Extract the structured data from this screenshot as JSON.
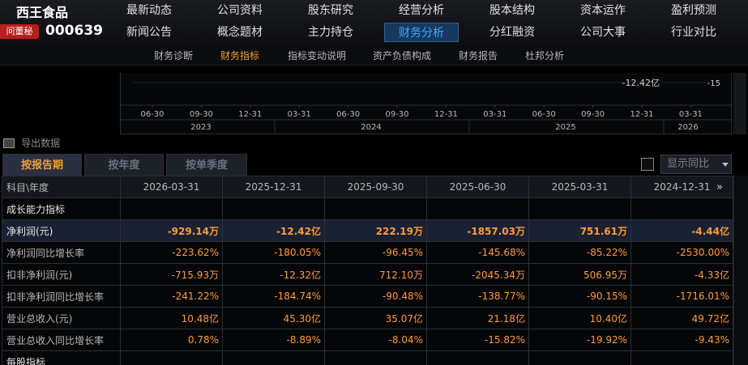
{
  "header": {
    "stock_name": "西王食品",
    "ask_badge": "问董秘",
    "stock_code": "000639"
  },
  "nav": {
    "row1": [
      "最新动态",
      "公司资料",
      "股东研究",
      "经营分析",
      "股本结构",
      "资本运作",
      "盈利预测"
    ],
    "row2": [
      "新闻公告",
      "概念题材",
      "主力持仓",
      "财务分析",
      "分红融资",
      "公司大事",
      "行业对比"
    ],
    "active": "财务分析"
  },
  "subnav": {
    "items": [
      "财务诊断",
      "财务指标",
      "指标变动说明",
      "资产负债构成",
      "财务报告",
      "杜邦分析"
    ],
    "active": "财务指标"
  },
  "chart_data": {
    "type": "bar",
    "x": [
      "06-30",
      "09-30",
      "12-31",
      "03-31",
      "06-30",
      "09-30",
      "12-31",
      "03-31",
      "06-30",
      "09-30",
      "12-31",
      "03-31"
    ],
    "years": [
      "2023",
      "2024",
      "2025",
      "2026"
    ],
    "annotation": "-12.42亿",
    "y_tick": "-15"
  },
  "export": {
    "label": "导出数据"
  },
  "tabs": [
    "按报告期",
    "按年度",
    "按单季度"
  ],
  "active_tab": "按报告期",
  "yoy": {
    "label": "显示同比"
  },
  "table": {
    "corner": "科目\\年度",
    "columns": [
      "2026-03-31",
      "2025-12-31",
      "2025-09-30",
      "2025-06-30",
      "2025-03-31",
      "2024-12-31"
    ],
    "rows": [
      {
        "label": "成长能力指标",
        "values": [
          "",
          "",
          "",
          "",
          "",
          ""
        ]
      },
      {
        "label": "净利润(元)",
        "values": [
          "-929.14万",
          "-12.42亿",
          "222.19万",
          "-1857.03万",
          "751.61万",
          "-4.44亿"
        ]
      },
      {
        "label": "净利润同比增长率",
        "values": [
          "-223.62%",
          "-180.05%",
          "-96.45%",
          "-145.68%",
          "-85.22%",
          "-2530.00%"
        ]
      },
      {
        "label": "扣非净利润(元)",
        "values": [
          "-715.93万",
          "-12.32亿",
          "712.10万",
          "-2045.34万",
          "506.95万",
          "-4.33亿"
        ]
      },
      {
        "label": "扣非净利润同比增长率",
        "values": [
          "-241.22%",
          "-184.74%",
          "-90.48%",
          "-138.77%",
          "-90.15%",
          "-1716.01%"
        ]
      },
      {
        "label": "营业总收入(元)",
        "values": [
          "10.48亿",
          "45.30亿",
          "35.07亿",
          "21.18亿",
          "10.40亿",
          "49.72亿"
        ]
      },
      {
        "label": "营业总收入同比增长率",
        "values": [
          "0.78%",
          "-8.89%",
          "-8.04%",
          "-15.82%",
          "-19.92%",
          "-9.43%"
        ]
      },
      {
        "label": "每股指标",
        "values": [
          "",
          "",
          "",
          "",
          "",
          ""
        ]
      }
    ]
  },
  "colors": {
    "accent_orange": "#f0a030",
    "active_nav": "#3fa8ff",
    "value_orange": "#ff9a3c",
    "badge_red": "#b81e1e"
  }
}
